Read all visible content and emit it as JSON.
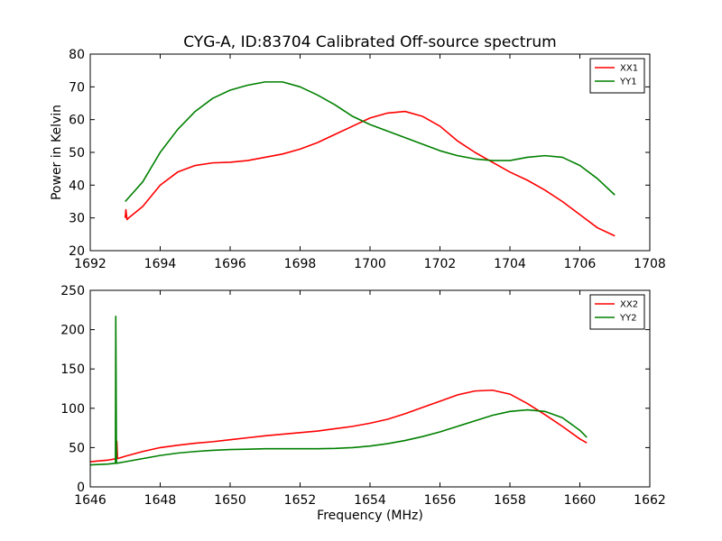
{
  "title": "CYG-A, ID:83704 Calibrated Off-source spectrum",
  "chart_data": [
    {
      "type": "line",
      "title": "CYG-A, ID:83704 Calibrated Off-source spectrum",
      "xlabel": "",
      "ylabel": "Power in Kelvin",
      "xlim": [
        1692,
        1708
      ],
      "ylim": [
        20,
        80
      ],
      "xticks": [
        "1692",
        "1694",
        "1696",
        "1698",
        "1700",
        "1702",
        "1704",
        "1706",
        "1708"
      ],
      "yticks": [
        "20",
        "30",
        "40",
        "50",
        "60",
        "70",
        "80"
      ],
      "grid": false,
      "legend": "top-right",
      "series": [
        {
          "name": "XX1",
          "color": "#ff0000",
          "x": [
            1693.0,
            1693.02,
            1693.05,
            1693.1,
            1693.5,
            1694.0,
            1694.5,
            1695.0,
            1695.5,
            1696.0,
            1696.5,
            1697.0,
            1697.5,
            1698.0,
            1698.5,
            1699.0,
            1699.5,
            1700.0,
            1700.5,
            1701.0,
            1701.5,
            1702.0,
            1702.5,
            1703.0,
            1703.5,
            1704.0,
            1704.5,
            1705.0,
            1705.5,
            1706.0,
            1706.5,
            1707.0
          ],
          "y": [
            30.0,
            32.5,
            29.5,
            30.0,
            33.5,
            40.0,
            44.0,
            46.0,
            46.8,
            47.0,
            47.5,
            48.5,
            49.5,
            51.0,
            53.0,
            55.5,
            58.0,
            60.5,
            62.0,
            62.5,
            61.0,
            58.0,
            53.5,
            50.0,
            47.0,
            44.0,
            41.5,
            38.5,
            35.0,
            31.0,
            27.0,
            24.5
          ]
        },
        {
          "name": "YY1",
          "color": "#008000",
          "x": [
            1693.0,
            1693.5,
            1694.0,
            1694.5,
            1695.0,
            1695.5,
            1696.0,
            1696.5,
            1697.0,
            1697.5,
            1698.0,
            1698.5,
            1699.0,
            1699.5,
            1700.0,
            1700.5,
            1701.0,
            1701.5,
            1702.0,
            1702.5,
            1703.0,
            1703.5,
            1704.0,
            1704.5,
            1705.0,
            1705.5,
            1706.0,
            1706.5,
            1707.0
          ],
          "y": [
            35.0,
            41.0,
            50.0,
            57.0,
            62.5,
            66.5,
            69.0,
            70.5,
            71.5,
            71.5,
            70.0,
            67.5,
            64.5,
            61.0,
            58.5,
            56.5,
            54.5,
            52.5,
            50.5,
            49.0,
            48.0,
            47.5,
            47.5,
            48.5,
            49.0,
            48.5,
            46.0,
            42.0,
            37.0
          ]
        }
      ]
    },
    {
      "type": "line",
      "title": "",
      "xlabel": "Frequency (MHz)",
      "ylabel": "",
      "xlim": [
        1646,
        1662
      ],
      "ylim": [
        0,
        250
      ],
      "xticks": [
        "1646",
        "1648",
        "1650",
        "1652",
        "1654",
        "1656",
        "1658",
        "1660",
        "1662"
      ],
      "yticks": [
        "0",
        "50",
        "100",
        "150",
        "200",
        "250"
      ],
      "grid": false,
      "legend": "top-right",
      "series": [
        {
          "name": "XX2",
          "color": "#ff0000",
          "x": [
            1646.0,
            1646.5,
            1646.75,
            1646.76,
            1646.78,
            1647.0,
            1647.5,
            1648.0,
            1648.5,
            1649.0,
            1649.5,
            1650.0,
            1650.5,
            1651.0,
            1651.5,
            1652.0,
            1652.5,
            1653.0,
            1653.5,
            1654.0,
            1654.5,
            1655.0,
            1655.5,
            1656.0,
            1656.5,
            1657.0,
            1657.5,
            1658.0,
            1658.5,
            1659.0,
            1659.5,
            1660.0,
            1660.2
          ],
          "y": [
            32.0,
            34.0,
            36.0,
            58.0,
            36.0,
            39.0,
            45.0,
            50.0,
            53.0,
            55.5,
            57.5,
            60.0,
            62.5,
            65.0,
            67.0,
            69.0,
            71.0,
            74.0,
            77.0,
            81.0,
            86.0,
            93.0,
            101.0,
            109.0,
            117.0,
            122.0,
            123.0,
            118.0,
            106.0,
            92.0,
            77.0,
            61.0,
            56.0
          ]
        },
        {
          "name": "YY2",
          "color": "#008000",
          "x": [
            1646.0,
            1646.5,
            1646.72,
            1646.73,
            1646.75,
            1647.0,
            1647.5,
            1648.0,
            1648.5,
            1649.0,
            1649.5,
            1650.0,
            1650.5,
            1651.0,
            1651.5,
            1652.0,
            1652.5,
            1653.0,
            1653.5,
            1654.0,
            1654.5,
            1655.0,
            1655.5,
            1656.0,
            1656.5,
            1657.0,
            1657.5,
            1658.0,
            1658.5,
            1659.0,
            1659.5,
            1660.0,
            1660.2
          ],
          "y": [
            28.0,
            29.0,
            30.0,
            217.0,
            30.0,
            32.0,
            36.0,
            40.0,
            43.0,
            45.0,
            46.5,
            47.5,
            48.0,
            48.5,
            48.5,
            48.5,
            48.5,
            49.0,
            50.0,
            52.0,
            55.0,
            59.0,
            64.0,
            70.0,
            77.0,
            84.0,
            91.0,
            96.0,
            98.0,
            96.0,
            88.0,
            72.0,
            63.0
          ]
        }
      ]
    }
  ]
}
